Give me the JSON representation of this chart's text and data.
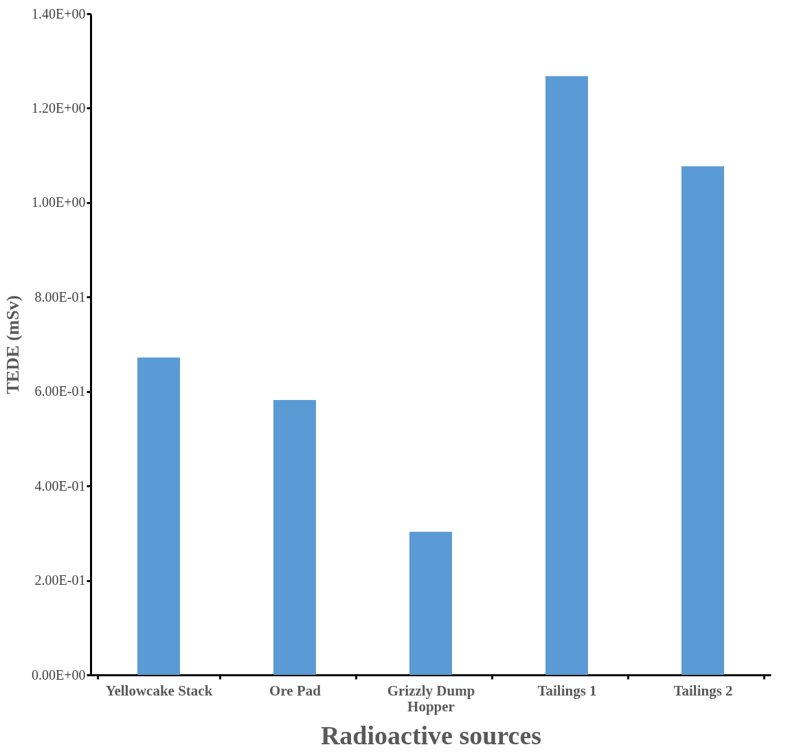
{
  "chart_data": {
    "type": "bar",
    "xlabel": "Radioactive sources",
    "ylabel": "TEDE (mSv)",
    "categories": [
      "Yellowcake Stack",
      "Ore Pad",
      "Grizzly Dump Hopper",
      "Tailings 1",
      "Tailings 2"
    ],
    "series": [
      {
        "color": "#5b9bd5",
        "values": [
          0.672,
          0.582,
          0.303,
          1.268,
          1.077
        ]
      }
    ],
    "ylim": [
      0,
      1.4
    ],
    "yticks": [
      {
        "value": 0,
        "label": "0.00E+00"
      },
      {
        "value": 0.2,
        "label": "2.00E-01"
      },
      {
        "value": 0.4,
        "label": "4.00E-01"
      },
      {
        "value": 0.6,
        "label": "6.00E-01"
      },
      {
        "value": 0.8,
        "label": "8.00E-01"
      },
      {
        "value": 1.0,
        "label": "1.00E+00"
      },
      {
        "value": 1.2,
        "label": "1.20E+00"
      },
      {
        "value": 1.4,
        "label": "1.40E+00"
      }
    ],
    "legend": false,
    "grid": false
  }
}
